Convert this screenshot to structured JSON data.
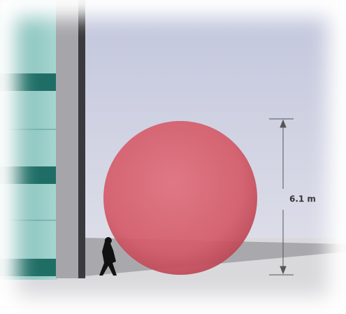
{
  "dimension": {
    "label": "6.1 m"
  }
}
